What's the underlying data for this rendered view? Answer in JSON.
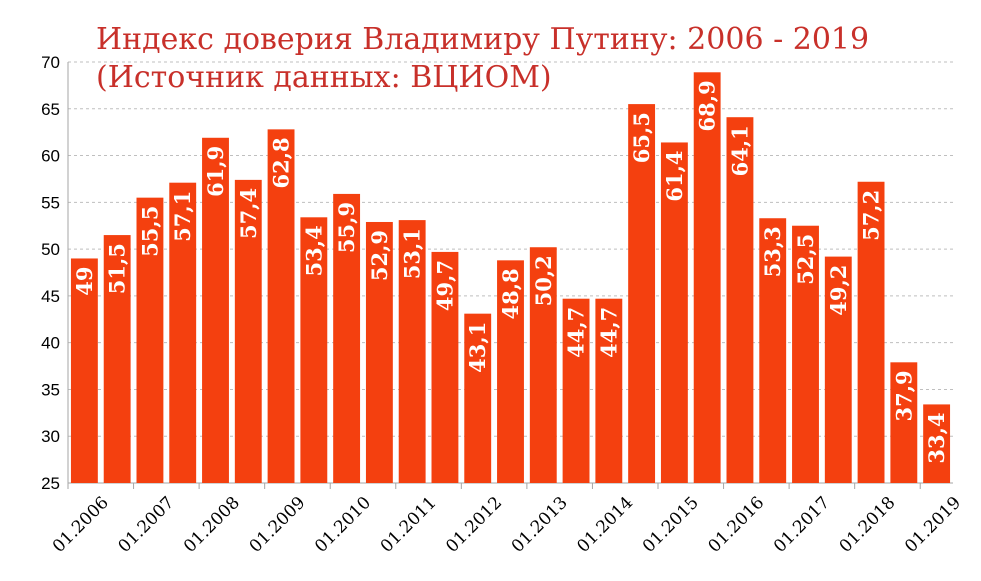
{
  "chart_data": {
    "type": "bar",
    "title": "Индекс доверия Владимиру Путину: 2006 - 2019",
    "subtitle": "(Источник данных: ВЦИОМ)",
    "xlabel": "",
    "ylabel": "",
    "ylim": [
      25,
      70
    ],
    "yticks": [
      "25",
      "30",
      "35",
      "40",
      "45",
      "50",
      "55",
      "60",
      "65",
      "70"
    ],
    "grid": true,
    "values": [
      49,
      51.5,
      55.5,
      57.1,
      61.9,
      57.4,
      62.8,
      53.4,
      55.9,
      52.9,
      53.1,
      49.7,
      43.1,
      48.8,
      50.2,
      44.7,
      44.7,
      65.5,
      61.4,
      68.9,
      64.1,
      53.3,
      52.5,
      49.2,
      57.2,
      37.9,
      33.4
    ],
    "value_labels": [
      "49",
      "51,5",
      "55,5",
      "57,1",
      "61,9",
      "57,4",
      "62,8",
      "53,4",
      "55,9",
      "52,9",
      "53,1",
      "49,7",
      "43,1",
      "48,8",
      "50,2",
      "44,7",
      "44,7",
      "65,5",
      "61,4",
      "68,9",
      "64,1",
      "53,3",
      "52,5",
      "49,2",
      "57,2",
      "37,9",
      "33,4"
    ],
    "tick_labels": [
      "01.2006",
      "01.2007",
      "01.2008",
      "01.2009",
      "01.2010",
      "01.2011",
      "01.2012",
      "01.2013",
      "01.2014",
      "01.2015",
      "01.2016",
      "01.2017",
      "01.2018",
      "01.2019"
    ],
    "colors": {
      "bar": "#f4400f",
      "title": "#c8302a",
      "grid": "#bfbfbf",
      "axis": "#a6a6a6",
      "label": "#ffffff",
      "text": "#000000"
    }
  }
}
